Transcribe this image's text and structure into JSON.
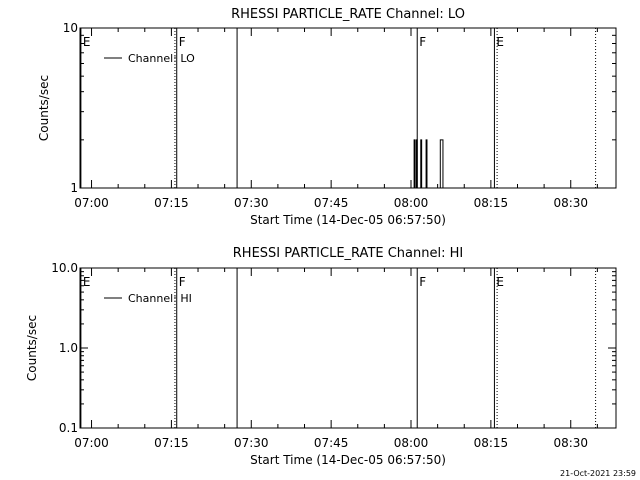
{
  "footer": {
    "timestamp": "21-Oct-2021 23:59"
  },
  "chart_data": [
    {
      "type": "line",
      "title": "RHESSI PARTICLE_RATE Channel: LO",
      "xlabel": "Start Time (14-Dec-05 06:57:50)",
      "ylabel": "Counts/sec",
      "yscale": "log",
      "ylim": [
        1,
        10
      ],
      "xlim": [
        "06:57:50",
        "08:38:30"
      ],
      "xticks": [
        "07:00",
        "07:15",
        "07:30",
        "07:45",
        "08:00",
        "08:15",
        "08:30"
      ],
      "yticks": [
        "1",
        "10"
      ],
      "legend": {
        "placement": "top-left"
      },
      "series": [
        {
          "name": "Channel: LO",
          "points": [
            [
              "08:00:30",
              1
            ],
            [
              "08:00:35",
              2
            ],
            [
              "08:00:45",
              1
            ],
            [
              "08:01:00",
              2
            ],
            [
              "08:01:10",
              1
            ],
            [
              "08:01:50",
              2
            ],
            [
              "08:02:00",
              1
            ],
            [
              "08:02:50",
              2
            ],
            [
              "08:03:00",
              1
            ],
            [
              "08:05:30",
              2
            ],
            [
              "08:06:00",
              1
            ]
          ]
        }
      ],
      "markers": [
        {
          "label": "E",
          "time": "06:58:00",
          "style": "solid"
        },
        {
          "label": "F",
          "time": "07:16:00",
          "style": "solid"
        },
        {
          "label": "",
          "time": "07:15:40",
          "style": "dotted"
        },
        {
          "label": "",
          "time": "07:27:20",
          "style": "solid"
        },
        {
          "label": "F",
          "time": "08:01:10",
          "style": "solid"
        },
        {
          "label": "E",
          "time": "08:15:40",
          "style": "solid"
        },
        {
          "label": "",
          "time": "08:16:10",
          "style": "dotted"
        },
        {
          "label": "",
          "time": "08:34:40",
          "style": "dotted"
        }
      ]
    },
    {
      "type": "line",
      "title": "RHESSI PARTICLE_RATE Channel: HI",
      "xlabel": "Start Time (14-Dec-05 06:57:50)",
      "ylabel": "Counts/sec",
      "yscale": "log",
      "ylim": [
        0.1,
        10
      ],
      "xlim": [
        "06:57:50",
        "08:38:30"
      ],
      "xticks": [
        "07:00",
        "07:15",
        "07:30",
        "07:45",
        "08:00",
        "08:15",
        "08:30"
      ],
      "yticks": [
        "0.1",
        "1.0",
        "10.0"
      ],
      "legend": {
        "placement": "top-left"
      },
      "series": [
        {
          "name": "Channel: HI",
          "points": []
        }
      ],
      "markers": [
        {
          "label": "E",
          "time": "06:58:00",
          "style": "solid"
        },
        {
          "label": "F",
          "time": "07:16:00",
          "style": "solid"
        },
        {
          "label": "",
          "time": "07:15:40",
          "style": "dotted"
        },
        {
          "label": "",
          "time": "07:27:20",
          "style": "solid"
        },
        {
          "label": "F",
          "time": "08:01:10",
          "style": "solid"
        },
        {
          "label": "E",
          "time": "08:15:40",
          "style": "solid"
        },
        {
          "label": "",
          "time": "08:16:10",
          "style": "dotted"
        },
        {
          "label": "",
          "time": "08:34:40",
          "style": "dotted"
        }
      ]
    }
  ]
}
